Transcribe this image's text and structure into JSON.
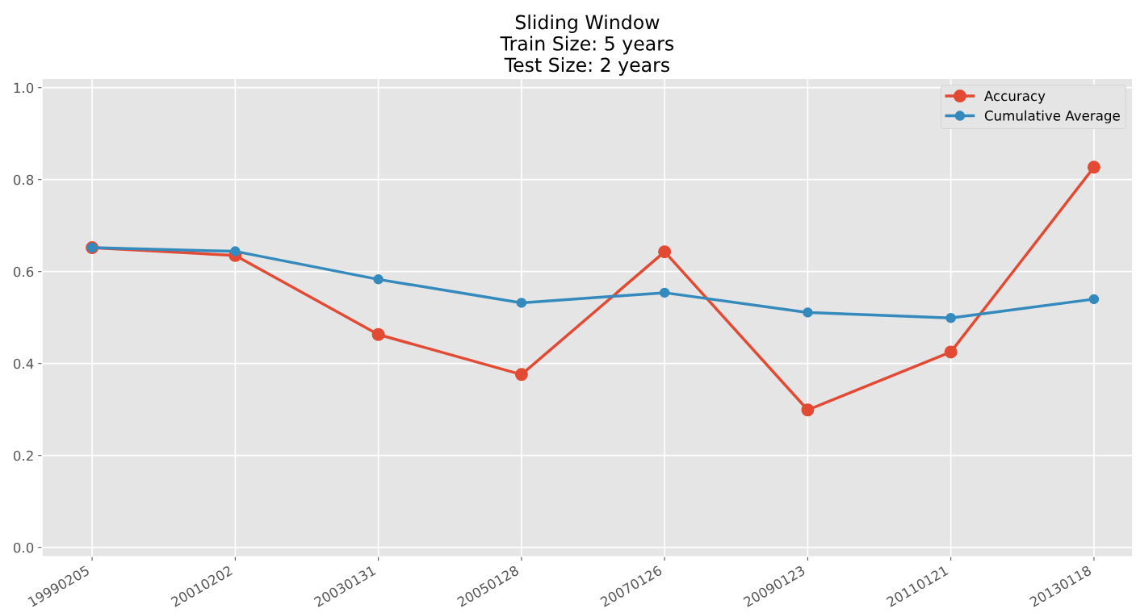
{
  "chart_data": {
    "type": "line",
    "title": "Sliding Window\nTrain Size: 5 years\nTest Size: 2 years",
    "categories": [
      "19990205",
      "20010202",
      "20030131",
      "20050128",
      "20070126",
      "20090123",
      "20110121",
      "20130118"
    ],
    "series": [
      {
        "name": "Accuracy",
        "color": "#e24a33",
        "values": [
          0.652,
          0.635,
          0.463,
          0.376,
          0.643,
          0.299,
          0.425,
          0.827
        ]
      },
      {
        "name": "Cumulative Average",
        "color": "#348abd",
        "values": [
          0.652,
          0.644,
          0.583,
          0.532,
          0.554,
          0.511,
          0.499,
          0.54
        ]
      }
    ],
    "ylim": [
      -0.02,
      1.02
    ],
    "yticks": [
      {
        "value": 0,
        "label": "0.0"
      },
      0.2,
      0.4,
      0.6,
      0.8,
      {
        "value": 1,
        "label": "1.0"
      }
    ],
    "grid": true,
    "legend": "top right",
    "marker": "circle",
    "line_style": "solid"
  }
}
